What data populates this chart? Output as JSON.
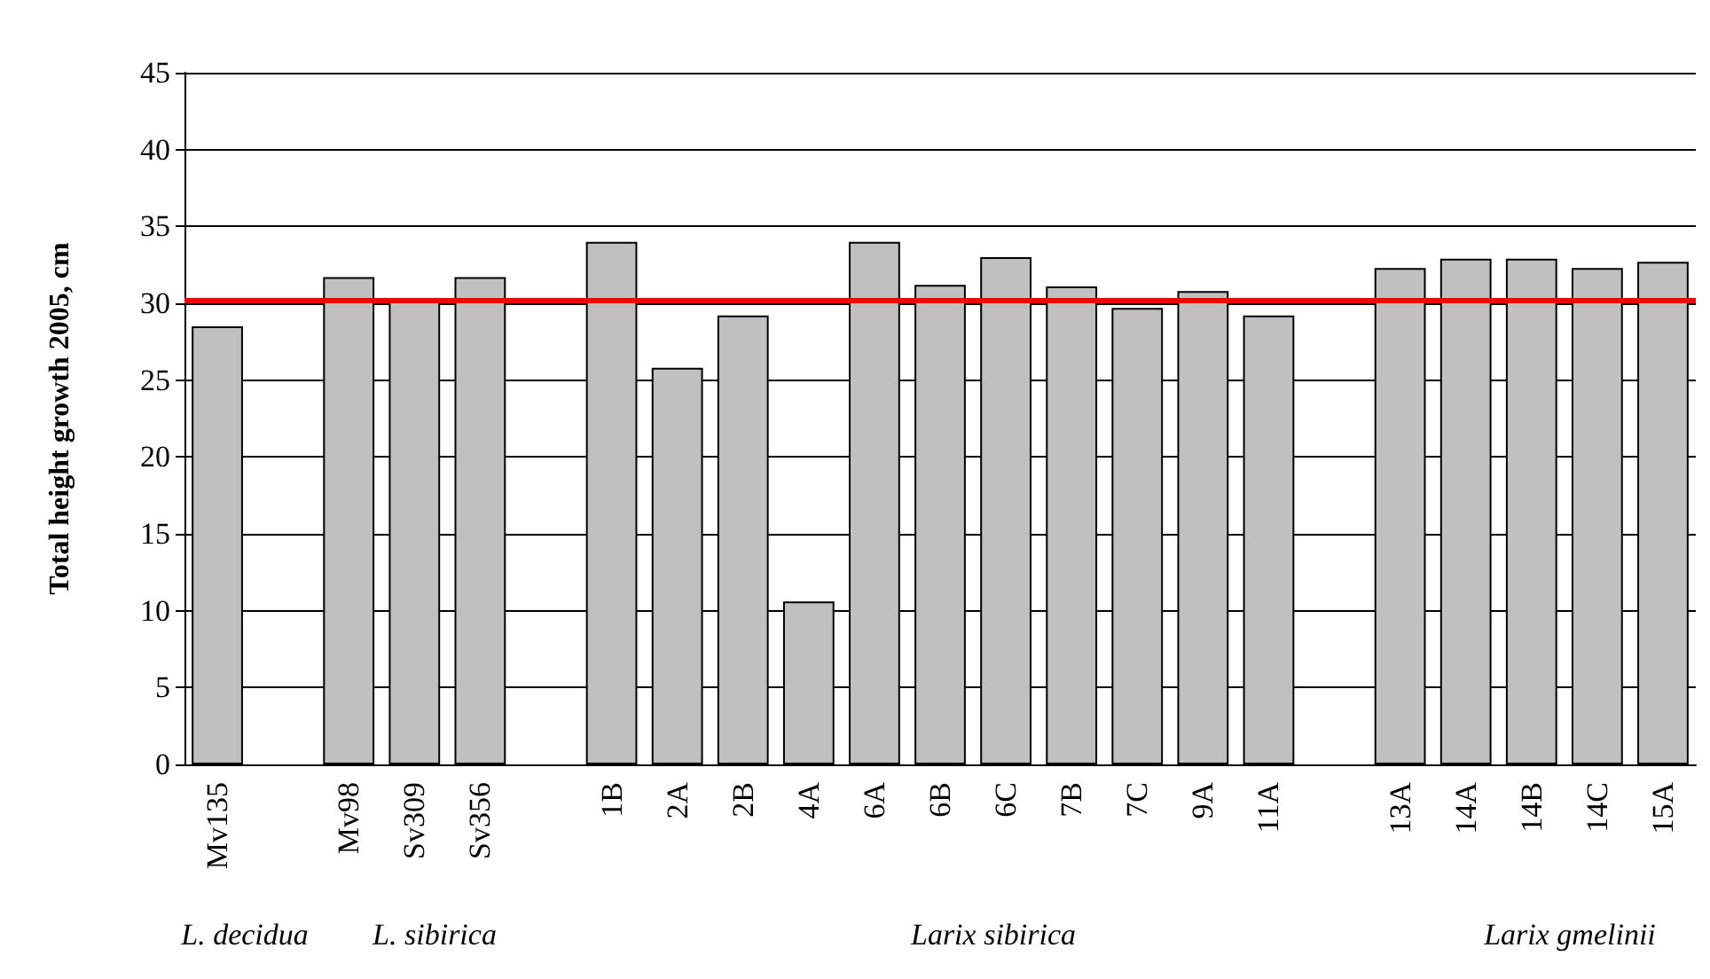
{
  "chart_data": {
    "type": "bar",
    "ylabel": "Total height growth 2005, cm",
    "categories": [
      "Mv135",
      null,
      "Mv98",
      "Sv309",
      "Sv356",
      null,
      "1B",
      "2A",
      "2B",
      "4A",
      "6A",
      "6B",
      "6C",
      "7B",
      "7C",
      "9A",
      "11A",
      null,
      "13A",
      "14A",
      "14B",
      "14C",
      "15A"
    ],
    "values": [
      28.5,
      null,
      31.7,
      30.3,
      31.7,
      null,
      34,
      25.8,
      29.2,
      10.6,
      34,
      31.2,
      33,
      31.1,
      29.7,
      30.8,
      29.2,
      null,
      32.3,
      32.9,
      32.9,
      32.3,
      32.7
    ],
    "color": "#c0c0c0",
    "ylim": [
      0,
      45
    ],
    "yticks": [
      0,
      5,
      10,
      15,
      20,
      25,
      30,
      35,
      40,
      45
    ],
    "grid": "y",
    "ref_lines": [
      {
        "axis": "y",
        "value": 30.2,
        "color": "#ff0000"
      }
    ],
    "annotations": [
      "L. decidua",
      "L. sibirica",
      "Larix sibirica",
      "Larix gmelinii"
    ]
  }
}
